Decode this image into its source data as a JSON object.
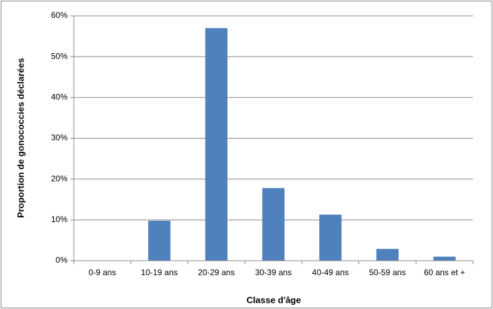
{
  "chart_data": {
    "type": "bar",
    "x_label": "Classe d'âge",
    "y_label": "Proportion de gonococcies déclarées",
    "categories": [
      "0-9 ans",
      "10-19 ans",
      "20-29 ans",
      "30-39 ans",
      "40-49 ans",
      "50-59 ans",
      "60 ans et +"
    ],
    "values": [
      0,
      9.8,
      57,
      17.8,
      11.3,
      2.9,
      1.0
    ],
    "color": "#4f81bd",
    "ylim": [
      0,
      60
    ],
    "yticks": [
      {
        "value": 0,
        "label": "0%"
      },
      {
        "value": 10,
        "label": "10%"
      },
      {
        "value": 20,
        "label": "20%"
      },
      {
        "value": 30,
        "label": "30%"
      },
      {
        "value": 40,
        "label": "40%"
      },
      {
        "value": 50,
        "label": "50%"
      },
      {
        "value": 60,
        "label": "60%"
      }
    ],
    "grid": true
  }
}
